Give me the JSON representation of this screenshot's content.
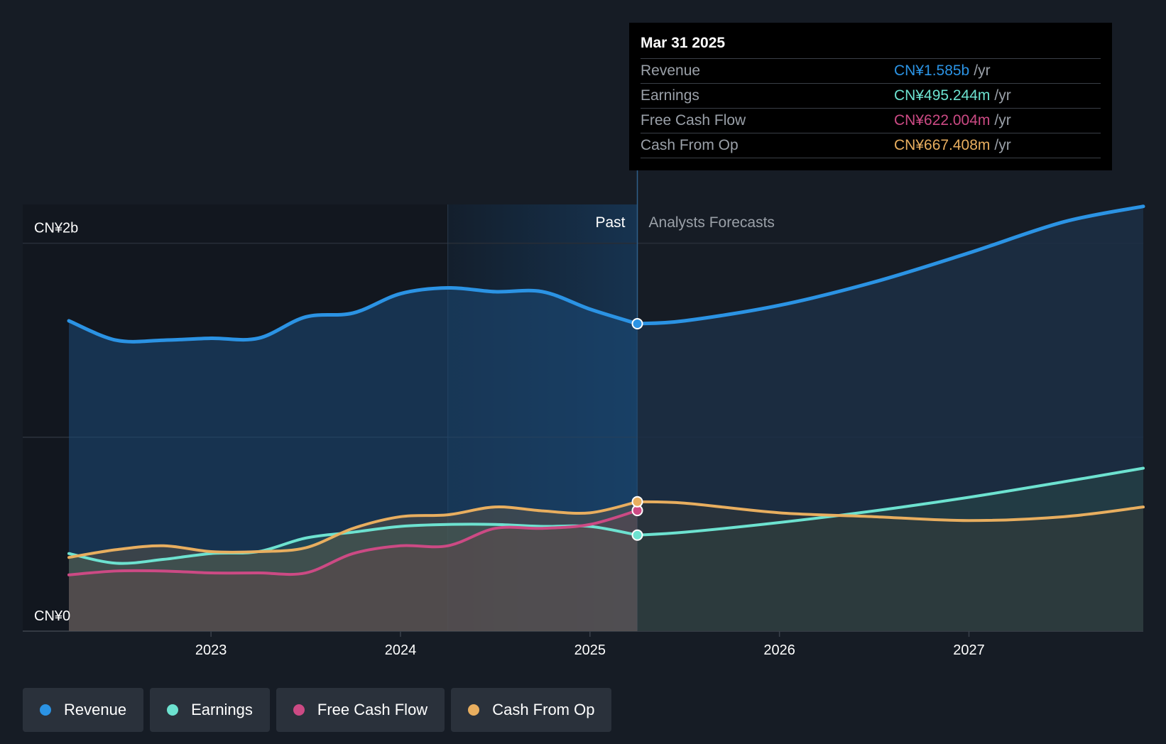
{
  "chart_data": {
    "type": "line",
    "x_range": [
      2022.25,
      2027.92
    ],
    "ylim": [
      0,
      2.2
    ],
    "y_unit": "CN¥ billions",
    "y_tick_labels": [
      {
        "value": 2.0,
        "label": "CN¥2b"
      },
      {
        "value": 0.0,
        "label": "CN¥0"
      }
    ],
    "gridline_values": [
      0,
      1,
      2
    ],
    "x_ticks": [
      {
        "value": 2023,
        "label": "2023"
      },
      {
        "value": 2024,
        "label": "2024"
      },
      {
        "value": 2025,
        "label": "2025"
      },
      {
        "value": 2026,
        "label": "2026"
      },
      {
        "value": 2027,
        "label": "2027"
      }
    ],
    "past_label": "Past",
    "forecast_label": "Analysts Forecasts",
    "divider_x": 2025.25,
    "highlight_start_x": 2024.25,
    "series": [
      {
        "name": "Revenue",
        "color": "#2b93e4",
        "past": [
          [
            2022.25,
            1.6
          ],
          [
            2022.5,
            1.5
          ],
          [
            2022.75,
            1.5
          ],
          [
            2023.0,
            1.51
          ],
          [
            2023.25,
            1.51
          ],
          [
            2023.5,
            1.62
          ],
          [
            2023.75,
            1.64
          ],
          [
            2024.0,
            1.74
          ],
          [
            2024.25,
            1.77
          ],
          [
            2024.5,
            1.75
          ],
          [
            2024.75,
            1.75
          ],
          [
            2025.0,
            1.66
          ],
          [
            2025.25,
            1.585
          ]
        ],
        "forecast": [
          [
            2025.25,
            1.585
          ],
          [
            2025.5,
            1.6
          ],
          [
            2026.0,
            1.68
          ],
          [
            2026.5,
            1.8
          ],
          [
            2027.0,
            1.95
          ],
          [
            2027.5,
            2.11
          ],
          [
            2027.92,
            2.19
          ]
        ]
      },
      {
        "name": "Earnings",
        "color": "#6de2d0",
        "past": [
          [
            2022.25,
            0.4
          ],
          [
            2022.5,
            0.35
          ],
          [
            2022.75,
            0.37
          ],
          [
            2023.0,
            0.4
          ],
          [
            2023.25,
            0.41
          ],
          [
            2023.5,
            0.48
          ],
          [
            2023.75,
            0.51
          ],
          [
            2024.0,
            0.54
          ],
          [
            2024.25,
            0.55
          ],
          [
            2024.5,
            0.55
          ],
          [
            2024.75,
            0.54
          ],
          [
            2025.0,
            0.54
          ],
          [
            2025.25,
            0.495
          ]
        ],
        "forecast": [
          [
            2025.25,
            0.495
          ],
          [
            2025.5,
            0.51
          ],
          [
            2026.0,
            0.56
          ],
          [
            2026.5,
            0.62
          ],
          [
            2027.0,
            0.69
          ],
          [
            2027.5,
            0.77
          ],
          [
            2027.92,
            0.84
          ]
        ]
      },
      {
        "name": "Free Cash Flow",
        "color": "#cc4a84",
        "past": [
          [
            2022.25,
            0.29
          ],
          [
            2022.5,
            0.31
          ],
          [
            2022.75,
            0.31
          ],
          [
            2023.0,
            0.3
          ],
          [
            2023.25,
            0.3
          ],
          [
            2023.5,
            0.3
          ],
          [
            2023.75,
            0.4
          ],
          [
            2024.0,
            0.44
          ],
          [
            2024.25,
            0.44
          ],
          [
            2024.5,
            0.53
          ],
          [
            2024.75,
            0.53
          ],
          [
            2025.0,
            0.55
          ],
          [
            2025.25,
            0.622
          ]
        ]
      },
      {
        "name": "Cash From Op",
        "color": "#e8ae5f",
        "past": [
          [
            2022.25,
            0.38
          ],
          [
            2022.5,
            0.42
          ],
          [
            2022.75,
            0.44
          ],
          [
            2023.0,
            0.41
          ],
          [
            2023.25,
            0.41
          ],
          [
            2023.5,
            0.43
          ],
          [
            2023.75,
            0.53
          ],
          [
            2024.0,
            0.59
          ],
          [
            2024.25,
            0.6
          ],
          [
            2024.5,
            0.64
          ],
          [
            2024.75,
            0.62
          ],
          [
            2025.0,
            0.61
          ],
          [
            2025.25,
            0.667
          ]
        ],
        "forecast": [
          [
            2025.25,
            0.667
          ],
          [
            2025.5,
            0.66
          ],
          [
            2026.0,
            0.61
          ],
          [
            2026.5,
            0.59
          ],
          [
            2027.0,
            0.57
          ],
          [
            2027.5,
            0.59
          ],
          [
            2027.92,
            0.64
          ]
        ]
      }
    ]
  },
  "tooltip": {
    "date": "Mar 31 2025",
    "rows": [
      {
        "label": "Revenue",
        "value": "CN¥1.585b",
        "unit": "/yr",
        "color": "#2b93e4"
      },
      {
        "label": "Earnings",
        "value": "CN¥495.244m",
        "unit": "/yr",
        "color": "#6de2d0"
      },
      {
        "label": "Free Cash Flow",
        "value": "CN¥622.004m",
        "unit": "/yr",
        "color": "#cc4a84"
      },
      {
        "label": "Cash From Op",
        "value": "CN¥667.408m",
        "unit": "/yr",
        "color": "#e8ae5f"
      }
    ]
  },
  "legend": [
    {
      "label": "Revenue",
      "color": "#2b93e4"
    },
    {
      "label": "Earnings",
      "color": "#6de2d0"
    },
    {
      "label": "Free Cash Flow",
      "color": "#cc4a84"
    },
    {
      "label": "Cash From Op",
      "color": "#e8ae5f"
    }
  ]
}
